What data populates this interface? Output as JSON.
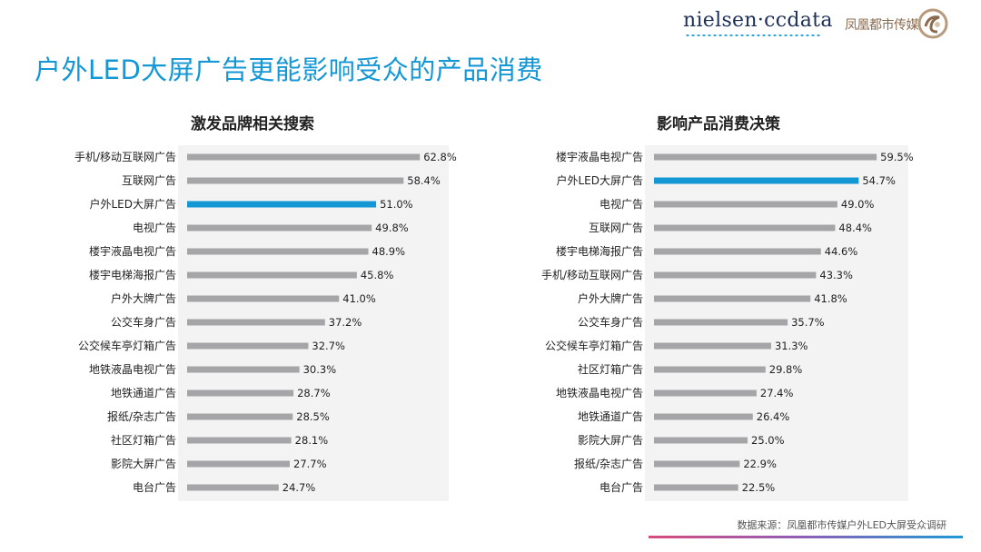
{
  "header": {
    "nielsen_logo": "nielsen·ccdata",
    "partner_logo": "凤凰都市传媒"
  },
  "title": "户外LED大屏广告更能影响受众的产品消费",
  "source": "数据来源：凤凰都市传媒户外LED大屏受众调研",
  "colors": {
    "title": "#1597d5",
    "highlight_bar": "#1597d5",
    "bar": "#a5a5a8"
  },
  "chart_data": [
    {
      "type": "bar",
      "orientation": "horizontal",
      "title": "激发品牌相关搜索",
      "unit": "%",
      "highlight": "户外LED大屏广告",
      "categories": [
        "手机/移动互联网广告",
        "互联网广告",
        "户外LED大屏广告",
        "电视广告",
        "楼宇液晶电视广告",
        "楼宇电梯海报广告",
        "户外大牌广告",
        "公交车身广告",
        "公交候车亭灯箱广告",
        "地铁液晶电视广告",
        "地铁通道广告",
        "报纸/杂志广告",
        "社区灯箱广告",
        "影院大屏广告",
        "电台广告"
      ],
      "values": [
        62.8,
        58.4,
        51.0,
        49.8,
        48.9,
        45.8,
        41.0,
        37.2,
        32.7,
        30.3,
        28.7,
        28.5,
        28.1,
        27.7,
        24.7
      ],
      "labels": [
        "62.8%",
        "58.4%",
        "51.0%",
        "49.8%",
        "48.9%",
        "45.8%",
        "41.0%",
        "37.2%",
        "32.7%",
        "30.3%",
        "28.7%",
        "28.5%",
        "28.1%",
        "27.7%",
        "24.7%"
      ]
    },
    {
      "type": "bar",
      "orientation": "horizontal",
      "title": "影响产品消费决策",
      "unit": "%",
      "highlight": "户外LED大屏广告",
      "categories": [
        "楼宇液晶电视广告",
        "户外LED大屏广告",
        "电视广告",
        "互联网广告",
        "楼宇电梯海报广告",
        "手机/移动互联网广告",
        "户外大牌广告",
        "公交车身广告",
        "公交候车亭灯箱广告",
        "社区灯箱广告",
        "地铁液晶电视广告",
        "地铁通道广告",
        "影院大屏广告",
        "报纸/杂志广告",
        "电台广告"
      ],
      "values": [
        59.5,
        54.7,
        49.0,
        48.4,
        44.6,
        43.3,
        41.8,
        35.7,
        31.3,
        29.8,
        27.4,
        26.4,
        25.0,
        22.9,
        22.5
      ],
      "labels": [
        "59.5%",
        "54.7%",
        "49.0%",
        "48.4%",
        "44.6%",
        "43.3%",
        "41.8%",
        "35.7%",
        "31.3%",
        "29.8%",
        "27.4%",
        "26.4%",
        "25.0%",
        "22.9%",
        "22.5%"
      ]
    }
  ]
}
